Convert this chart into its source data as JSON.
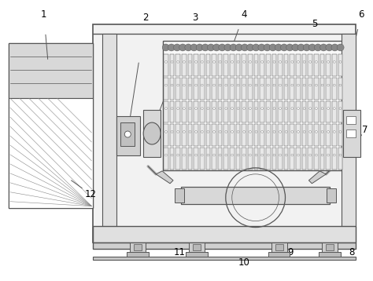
{
  "fig_width": 4.74,
  "fig_height": 3.58,
  "dpi": 100,
  "bg_color": "#ffffff",
  "line_color": "#555555",
  "lw": 0.8
}
